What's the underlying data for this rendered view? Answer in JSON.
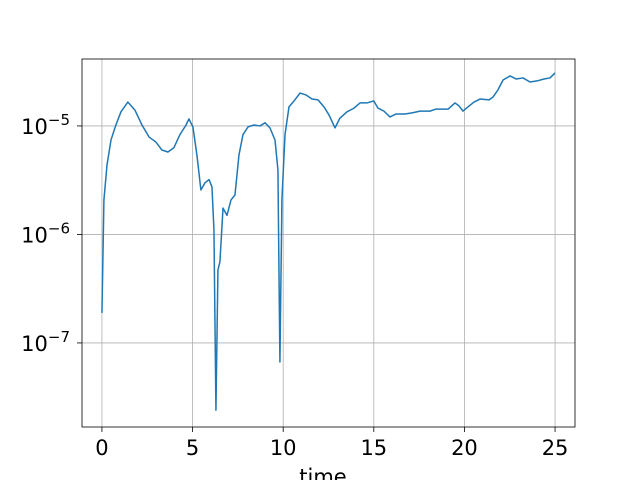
{
  "chart_data": {
    "type": "line",
    "xlabel": "time",
    "color": "#1f77b4",
    "log_y": true,
    "grid": true,
    "x": [
      0,
      0.11,
      0.28,
      0.5,
      0.77,
      1.05,
      1.43,
      1.82,
      2.21,
      2.6,
      2.98,
      3.31,
      3.64,
      3.97,
      4.3,
      4.64,
      4.8,
      5.02,
      5.24,
      5.46,
      5.68,
      5.91,
      6.07,
      6.18,
      6.29,
      6.4,
      6.51,
      6.68,
      6.9,
      7.12,
      7.34,
      7.56,
      7.78,
      8.06,
      8.39,
      8.72,
      9.0,
      9.27,
      9.55,
      9.71,
      9.82,
      9.93,
      10.1,
      10.32,
      10.6,
      10.93,
      11.26,
      11.59,
      11.92,
      12.25,
      12.53,
      12.86,
      13.13,
      13.52,
      13.91,
      14.24,
      14.62,
      15.0,
      15.23,
      15.56,
      15.89,
      16.23,
      16.72,
      17.11,
      17.55,
      18.1,
      18.43,
      19.1,
      19.48,
      19.7,
      19.92,
      20.2,
      20.53,
      20.86,
      21.36,
      21.58,
      21.85,
      22.13,
      22.52,
      22.85,
      23.23,
      23.62,
      24.0,
      24.39,
      24.72,
      25.0
    ],
    "values": [
      1.89e-07,
      2.08e-06,
      4.37e-06,
      7.43e-06,
      1.02e-05,
      1.35e-05,
      1.66e-05,
      1.4e-05,
      1.02e-05,
      7.9e-06,
      7.1e-06,
      6e-06,
      5.75e-06,
      6.3e-06,
      8.3e-06,
      1.02e-05,
      1.16e-05,
      9.8e-06,
      5.4e-06,
      2.57e-06,
      2.99e-06,
      3.2e-06,
      2.74e-06,
      1.1e-06,
      2.4e-08,
      4.71e-07,
      5.6e-07,
      1.75e-06,
      1.5e-06,
      2.08e-06,
      2.31e-06,
      5.4e-06,
      8.3e-06,
      9.8e-06,
      1.02e-05,
      1e-05,
      1.07e-05,
      9.6e-06,
      7.4e-06,
      3.93e-06,
      6.68e-08,
      2.08e-06,
      8.3e-06,
      1.5e-05,
      1.7e-05,
      2.01e-05,
      1.93e-05,
      1.77e-05,
      1.74e-05,
      1.5e-05,
      1.26e-05,
      9.6e-06,
      1.18e-05,
      1.35e-05,
      1.46e-05,
      1.63e-05,
      1.63e-05,
      1.7e-05,
      1.46e-05,
      1.37e-05,
      1.21e-05,
      1.29e-05,
      1.29e-05,
      1.32e-05,
      1.37e-05,
      1.37e-05,
      1.43e-05,
      1.43e-05,
      1.63e-05,
      1.53e-05,
      1.37e-05,
      1.5e-05,
      1.66e-05,
      1.77e-05,
      1.74e-05,
      1.85e-05,
      2.15e-05,
      2.65e-05,
      2.89e-05,
      2.71e-05,
      2.77e-05,
      2.54e-05,
      2.6e-05,
      2.71e-05,
      2.77e-05,
      3.08e-05
    ],
    "xlim": [
      -1.1,
      26.1
    ],
    "xticks": [
      0,
      5,
      10,
      15,
      20,
      25
    ],
    "ylim": [
      1.68e-08,
      4.14e-05
    ],
    "yticks": [
      {
        "value": 1e-07,
        "label": "10−7"
      },
      {
        "value": 1e-06,
        "label": "10−6"
      },
      {
        "value": 1e-05,
        "label": "10−5"
      }
    ]
  }
}
